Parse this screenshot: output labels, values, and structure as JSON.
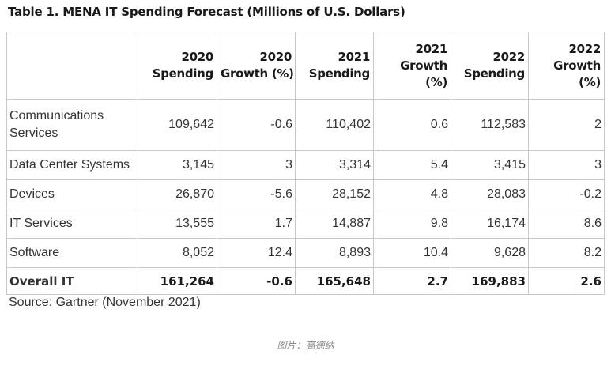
{
  "title": "Table 1. MENA IT Spending Forecast (Millions of U.S. Dollars)",
  "columns": [
    {
      "lines": [
        "",
        ""
      ]
    },
    {
      "lines": [
        "2020",
        "Spending"
      ]
    },
    {
      "lines": [
        "2020",
        "Growth (%)"
      ]
    },
    {
      "lines": [
        "2021",
        "Spending"
      ]
    },
    {
      "lines": [
        "2021",
        "Growth",
        "(%)"
      ]
    },
    {
      "lines": [
        "2022",
        "Spending"
      ]
    },
    {
      "lines": [
        "2022",
        "Growth",
        "(%)"
      ]
    }
  ],
  "rows": [
    {
      "label_lines": [
        "Communications",
        "Services"
      ],
      "values": [
        "109,642",
        "-0.6",
        "110,402",
        "0.6",
        "112,583",
        "2"
      ]
    },
    {
      "label_lines": [
        "Data Center Systems"
      ],
      "values": [
        "3,145",
        "3",
        "3,314",
        "5.4",
        "3,415",
        "3"
      ]
    },
    {
      "label_lines": [
        "Devices"
      ],
      "values": [
        "26,870",
        "-5.6",
        "28,152",
        "4.8",
        "28,083",
        "-0.2"
      ]
    },
    {
      "label_lines": [
        "IT Services"
      ],
      "values": [
        "13,555",
        "1.7",
        "14,887",
        "9.8",
        "16,174",
        "8.6"
      ]
    },
    {
      "label_lines": [
        "Software"
      ],
      "values": [
        "8,052",
        "12.4",
        "8,893",
        "10.4",
        "9,628",
        "8.2"
      ]
    }
  ],
  "total": {
    "label": "Overall IT",
    "values": [
      "161,264",
      "-0.6",
      "165,648",
      "2.7",
      "169,883",
      "2.6"
    ]
  },
  "source": "Source: Gartner (November 2021)",
  "caption": "图片：高德纳"
}
